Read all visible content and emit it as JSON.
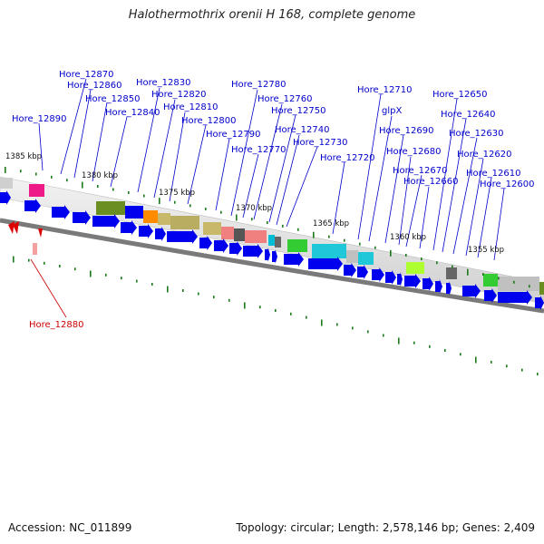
{
  "title": "Halothermothrix orenii H 168, complete genome",
  "footer": {
    "accession": "Accession: NC_011899",
    "topology": "Topology: circular; Length: 2,578,146 bp; Genes: 2,409"
  },
  "scale_labels": [
    "1385 kbp",
    "1380 kbp",
    "1375 kbp",
    "1370 kbp",
    "1365 kbp",
    "1360 kbp",
    "1355 kbp"
  ],
  "gene_labels": [
    "Hore_12870",
    "Hore_12860",
    "Hore_12850",
    "Hore_12840",
    "Hore_12890",
    "Hore_12830",
    "Hore_12820",
    "Hore_12810",
    "Hore_12800",
    "Hore_12790",
    "Hore_12780",
    "Hore_12770",
    "Hore_12760",
    "Hore_12750",
    "Hore_12740",
    "Hore_12730",
    "Hore_12720",
    "Hore_12710",
    "glpX",
    "Hore_12690",
    "Hore_12680",
    "Hore_12670",
    "Hore_12660",
    "Hore_12650",
    "Hore_12640",
    "Hore_12630",
    "Hore_12620",
    "Hore_12610",
    "Hore_12600",
    "Hore_12880"
  ],
  "colors": {
    "label": "#0000cc",
    "highlight_label": "#cc0000",
    "gene_arrow": "#0000ee",
    "backbone": "#888888",
    "tick": "#1a7a1a"
  }
}
